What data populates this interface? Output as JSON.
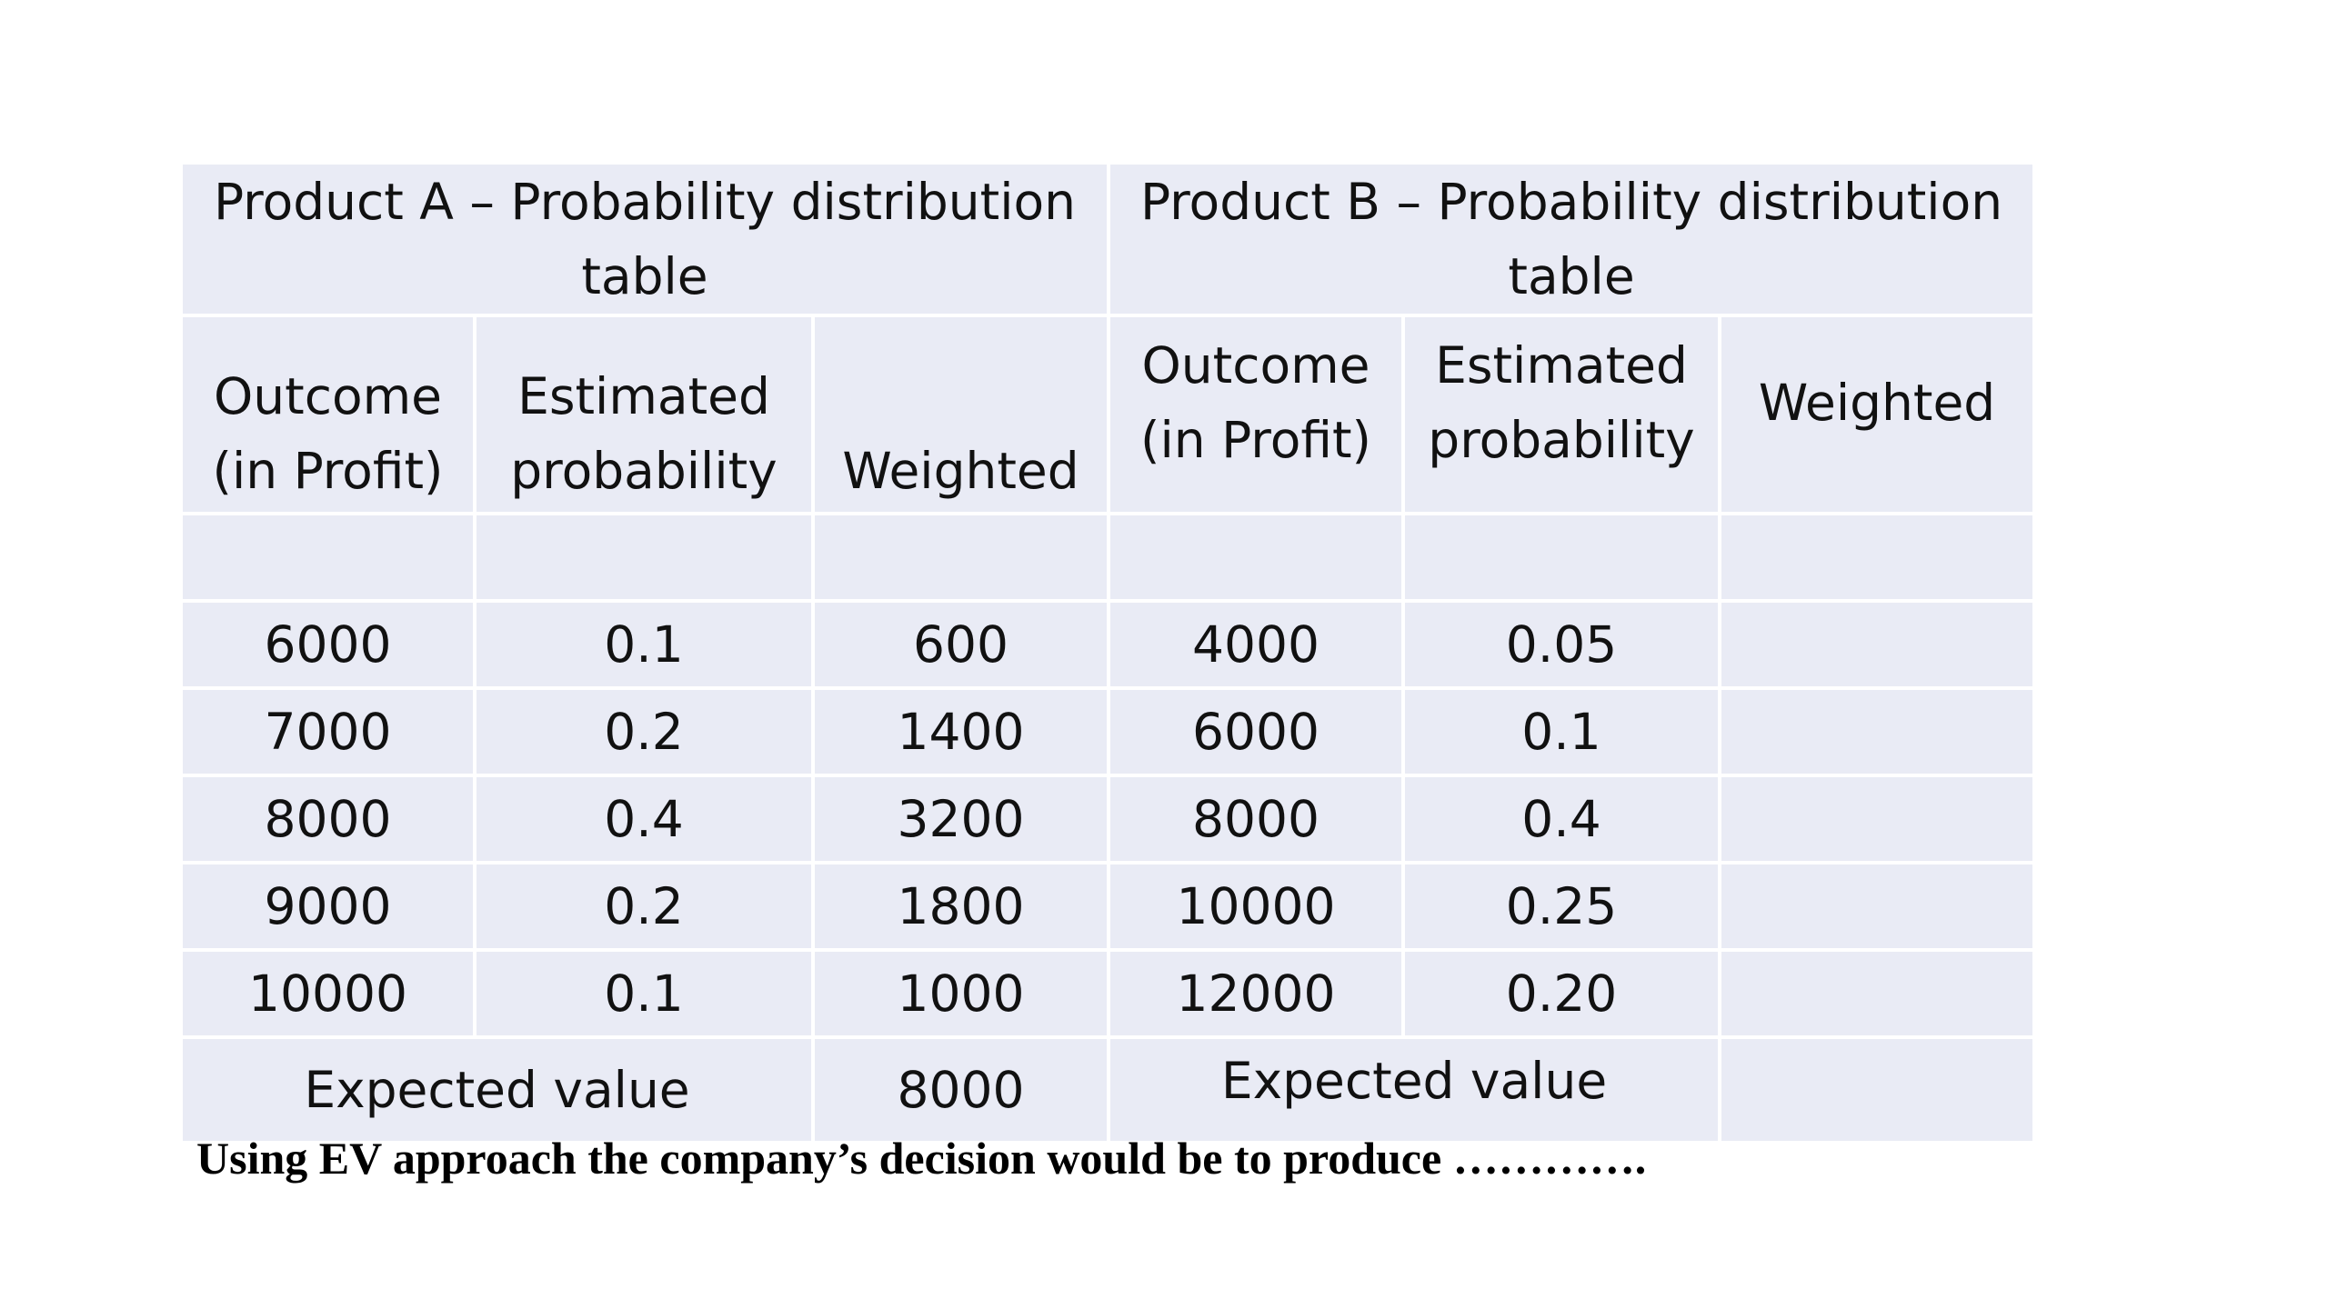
{
  "product_a": {
    "title": "Product A – Probability distribution table",
    "headers": {
      "outcome": "Outcome (in Profit)",
      "probability": "Estimated probability",
      "weighted": "Weighted"
    },
    "rows": [
      {
        "outcome": "6000",
        "probability": "0.1",
        "weighted": "600"
      },
      {
        "outcome": "7000",
        "probability": "0.2",
        "weighted": "1400"
      },
      {
        "outcome": "8000",
        "probability": "0.4",
        "weighted": "3200"
      },
      {
        "outcome": "9000",
        "probability": "0.2",
        "weighted": "1800"
      },
      {
        "outcome": "10000",
        "probability": "0.1",
        "weighted": "1000"
      }
    ],
    "expected_value_label": "Expected value",
    "expected_value": "8000"
  },
  "product_b": {
    "title": "Product B – Probability distribution table",
    "headers": {
      "outcome": "Outcome (in Profit)",
      "probability": "Estimated probability",
      "weighted": "Weighted"
    },
    "rows": [
      {
        "outcome": "4000",
        "probability": "0.05",
        "weighted": ""
      },
      {
        "outcome": "6000",
        "probability": "0.1",
        "weighted": ""
      },
      {
        "outcome": "8000",
        "probability": "0.4",
        "weighted": ""
      },
      {
        "outcome": "10000",
        "probability": "0.25",
        "weighted": ""
      },
      {
        "outcome": "12000",
        "probability": "0.20",
        "weighted": ""
      }
    ],
    "expected_value_label": "Expected value",
    "expected_value": ""
  },
  "conclusion": "Using EV approach the company’s decision would be to produce …………."
}
